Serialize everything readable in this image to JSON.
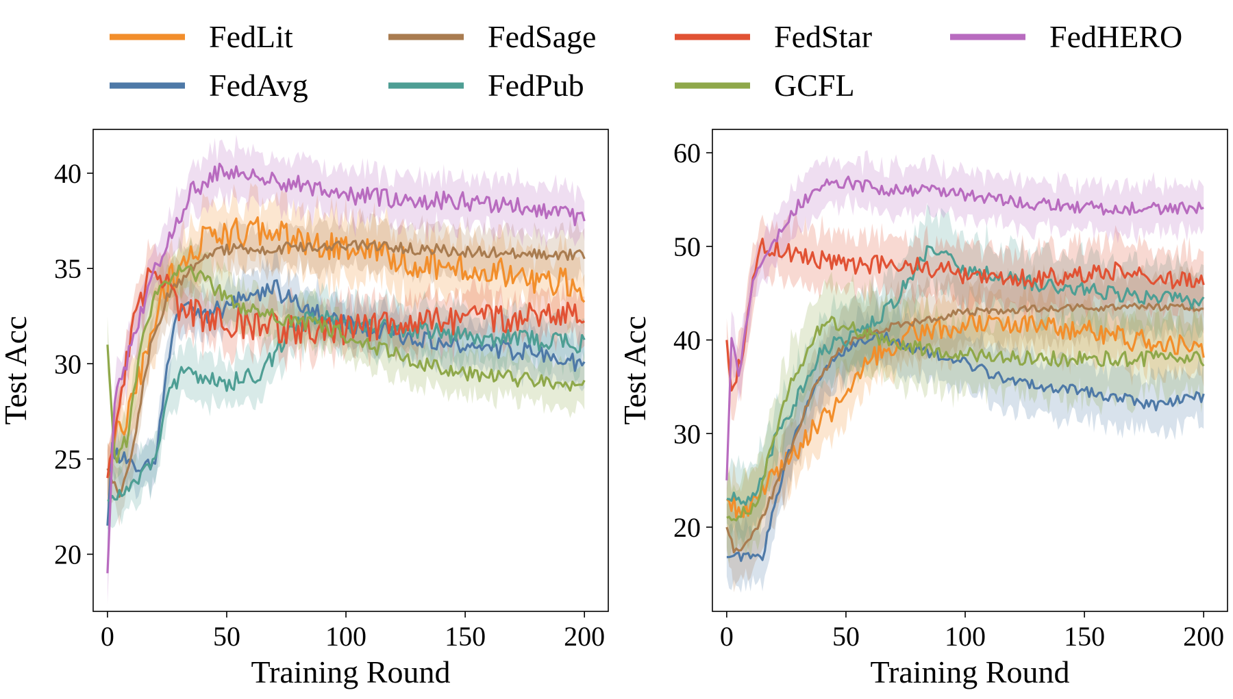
{
  "legend": [
    {
      "name": "FedLit",
      "color": "#F28E2B"
    },
    {
      "name": "FedAvg",
      "color": "#4E79A7"
    },
    {
      "name": "FedSage",
      "color": "#A97C50"
    },
    {
      "name": "FedPub",
      "color": "#4E9E94"
    },
    {
      "name": "FedStar",
      "color": "#E15234"
    },
    {
      "name": "GCFL",
      "color": "#8FA84A"
    },
    {
      "name": "FedHERO",
      "color": "#B86BBF"
    }
  ],
  "chart_data": [
    {
      "type": "line",
      "title": "",
      "xlabel": "Training Round",
      "ylabel": "Test Acc",
      "xlim": [
        -6,
        210
      ],
      "ylim": [
        17,
        42.3
      ],
      "xticks": [
        0,
        50,
        100,
        150,
        200
      ],
      "xtick_labels": [
        "0",
        "50",
        "100",
        "150",
        "200"
      ],
      "yticks": [
        20,
        25,
        30,
        35,
        40
      ],
      "ytick_labels": [
        "20",
        "25",
        "30",
        "35",
        "40"
      ],
      "band": "shaded ±std around each series",
      "series": [
        {
          "name": "FedLit",
          "color": "#F28E2B",
          "band": 1.6,
          "noise": 0.8,
          "points": [
            [
              0,
              24.0
            ],
            [
              3,
              26.0
            ],
            [
              8,
              27.0
            ],
            [
              15,
              30.0
            ],
            [
              22,
              33.5
            ],
            [
              30,
              35.0
            ],
            [
              40,
              36.5
            ],
            [
              60,
              37.0
            ],
            [
              80,
              36.5
            ],
            [
              100,
              36.0
            ],
            [
              120,
              35.5
            ],
            [
              150,
              35.0
            ],
            [
              180,
              34.5
            ],
            [
              200,
              34.0
            ]
          ]
        },
        {
          "name": "FedAvg",
          "color": "#4E79A7",
          "band": 1.2,
          "noise": 0.5,
          "points": [
            [
              0,
              21.5
            ],
            [
              2,
              25.5
            ],
            [
              6,
              25.0
            ],
            [
              12,
              24.5
            ],
            [
              20,
              25.0
            ],
            [
              25,
              29.5
            ],
            [
              30,
              33.0
            ],
            [
              40,
              32.5
            ],
            [
              50,
              33.0
            ],
            [
              60,
              33.5
            ],
            [
              70,
              34.0
            ],
            [
              80,
              33.0
            ],
            [
              100,
              32.0
            ],
            [
              150,
              31.0
            ],
            [
              180,
              30.5
            ],
            [
              200,
              30.0
            ]
          ]
        },
        {
          "name": "FedSage",
          "color": "#A97C50",
          "band": 1.2,
          "noise": 0.3,
          "points": [
            [
              0,
              24.5
            ],
            [
              5,
              23.0
            ],
            [
              10,
              25.0
            ],
            [
              18,
              31.0
            ],
            [
              25,
              33.5
            ],
            [
              35,
              35.0
            ],
            [
              45,
              36.0
            ],
            [
              60,
              36.0
            ],
            [
              100,
              36.2
            ],
            [
              150,
              35.9
            ],
            [
              200,
              35.7
            ]
          ]
        },
        {
          "name": "FedPub",
          "color": "#4E9E94",
          "band": 1.3,
          "noise": 0.5,
          "points": [
            [
              0,
              22.8
            ],
            [
              5,
              23.0
            ],
            [
              10,
              23.5
            ],
            [
              15,
              24.5
            ],
            [
              20,
              25.0
            ],
            [
              25,
              28.0
            ],
            [
              30,
              29.5
            ],
            [
              50,
              29.0
            ],
            [
              65,
              29.5
            ],
            [
              75,
              31.5
            ],
            [
              85,
              32.5
            ],
            [
              100,
              32.0
            ],
            [
              150,
              31.5
            ],
            [
              200,
              31.0
            ]
          ]
        },
        {
          "name": "FedStar",
          "color": "#E15234",
          "band": 1.2,
          "noise": 0.8,
          "points": [
            [
              0,
              24.0
            ],
            [
              3,
              27.0
            ],
            [
              8,
              30.0
            ],
            [
              12,
              33.0
            ],
            [
              18,
              34.5
            ],
            [
              25,
              34.5
            ],
            [
              30,
              33.0
            ],
            [
              40,
              32.5
            ],
            [
              60,
              32.0
            ],
            [
              80,
              31.8
            ],
            [
              100,
              31.8
            ],
            [
              150,
              32.3
            ],
            [
              200,
              32.5
            ]
          ]
        },
        {
          "name": "GCFL",
          "color": "#8FA84A",
          "band": 1.2,
          "noise": 0.4,
          "points": [
            [
              0,
              31.0
            ],
            [
              3,
              25.0
            ],
            [
              8,
              26.0
            ],
            [
              15,
              31.5
            ],
            [
              20,
              33.5
            ],
            [
              30,
              35.0
            ],
            [
              40,
              34.5
            ],
            [
              45,
              34.0
            ],
            [
              55,
              33.0
            ],
            [
              70,
              32.5
            ],
            [
              90,
              32.0
            ],
            [
              110,
              31.0
            ],
            [
              130,
              30.0
            ],
            [
              150,
              29.5
            ],
            [
              200,
              28.8
            ]
          ]
        },
        {
          "name": "FedHERO",
          "color": "#B86BBF",
          "band": 1.3,
          "noise": 0.5,
          "points": [
            [
              0,
              19.0
            ],
            [
              3,
              28.0
            ],
            [
              8,
              30.0
            ],
            [
              15,
              33.0
            ],
            [
              22,
              35.5
            ],
            [
              28,
              37.0
            ],
            [
              35,
              39.0
            ],
            [
              45,
              40.0
            ],
            [
              60,
              40.0
            ],
            [
              75,
              39.5
            ],
            [
              100,
              38.8
            ],
            [
              150,
              38.5
            ],
            [
              180,
              38.2
            ],
            [
              200,
              37.5
            ]
          ]
        }
      ]
    },
    {
      "type": "line",
      "title": "",
      "xlabel": "Training Round",
      "ylabel": "Test Acc",
      "xlim": [
        -6,
        210
      ],
      "ylim": [
        11,
        62.5
      ],
      "xticks": [
        0,
        50,
        100,
        150,
        200
      ],
      "xtick_labels": [
        "0",
        "50",
        "100",
        "150",
        "200"
      ],
      "yticks": [
        20,
        30,
        40,
        50,
        60
      ],
      "ytick_labels": [
        "20",
        "30",
        "40",
        "50",
        "60"
      ],
      "band": "shaded ±std around each series",
      "series": [
        {
          "name": "FedLit",
          "color": "#F28E2B",
          "band": 3.0,
          "noise": 1.2,
          "points": [
            [
              0,
              23.0
            ],
            [
              5,
              22.0
            ],
            [
              10,
              22.5
            ],
            [
              15,
              24.0
            ],
            [
              25,
              27.0
            ],
            [
              35,
              30.0
            ],
            [
              50,
              34.0
            ],
            [
              60,
              38.0
            ],
            [
              80,
              41.0
            ],
            [
              100,
              41.5
            ],
            [
              120,
              42.0
            ],
            [
              150,
              41.0
            ],
            [
              170,
              40.0
            ],
            [
              200,
              39.0
            ]
          ]
        },
        {
          "name": "FedAvg",
          "color": "#4E79A7",
          "band": 3.0,
          "noise": 0.6,
          "points": [
            [
              0,
              16.8
            ],
            [
              5,
              16.8
            ],
            [
              15,
              16.8
            ],
            [
              20,
              22.0
            ],
            [
              25,
              27.0
            ],
            [
              35,
              34.0
            ],
            [
              45,
              38.0
            ],
            [
              55,
              40.0
            ],
            [
              65,
              40.5
            ],
            [
              80,
              39.0
            ],
            [
              100,
              37.5
            ],
            [
              120,
              35.5
            ],
            [
              150,
              34.5
            ],
            [
              180,
              33.0
            ],
            [
              200,
              34.0
            ]
          ]
        },
        {
          "name": "FedSage",
          "color": "#A97C50",
          "band": 3.5,
          "noise": 0.4,
          "points": [
            [
              0,
              20.0
            ],
            [
              3,
              17.5
            ],
            [
              8,
              18.0
            ],
            [
              15,
              21.0
            ],
            [
              25,
              27.0
            ],
            [
              35,
              34.0
            ],
            [
              45,
              38.5
            ],
            [
              55,
              40.5
            ],
            [
              70,
              41.5
            ],
            [
              100,
              43.0
            ],
            [
              150,
              43.5
            ],
            [
              200,
              43.5
            ]
          ]
        },
        {
          "name": "FedPub",
          "color": "#4E9E94",
          "band": 3.5,
          "noise": 0.8,
          "points": [
            [
              0,
              23.0
            ],
            [
              5,
              23.0
            ],
            [
              12,
              23.2
            ],
            [
              20,
              29.0
            ],
            [
              30,
              34.0
            ],
            [
              40,
              39.0
            ],
            [
              50,
              40.0
            ],
            [
              60,
              41.5
            ],
            [
              70,
              44.0
            ],
            [
              80,
              48.0
            ],
            [
              85,
              50.0
            ],
            [
              100,
              47.5
            ],
            [
              130,
              46.0
            ],
            [
              160,
              45.0
            ],
            [
              200,
              44.0
            ]
          ]
        },
        {
          "name": "FedStar",
          "color": "#E15234",
          "band": 3.0,
          "noise": 1.0,
          "points": [
            [
              0,
              40.0
            ],
            [
              2,
              34.0
            ],
            [
              6,
              38.0
            ],
            [
              10,
              45.0
            ],
            [
              15,
              50.0
            ],
            [
              25,
              49.5
            ],
            [
              50,
              48.0
            ],
            [
              80,
              48.0
            ],
            [
              100,
              47.0
            ],
            [
              130,
              46.5
            ],
            [
              160,
              47.5
            ],
            [
              200,
              46.0
            ]
          ]
        },
        {
          "name": "GCFL",
          "color": "#8FA84A",
          "band": 4.0,
          "noise": 0.8,
          "points": [
            [
              0,
              21.0
            ],
            [
              5,
              21.5
            ],
            [
              12,
              22.0
            ],
            [
              20,
              30.0
            ],
            [
              28,
              36.0
            ],
            [
              38,
              41.0
            ],
            [
              45,
              42.0
            ],
            [
              55,
              41.0
            ],
            [
              70,
              39.5
            ],
            [
              100,
              38.5
            ],
            [
              130,
              38.0
            ],
            [
              170,
              38.0
            ],
            [
              200,
              38.0
            ]
          ]
        },
        {
          "name": "FedHERO",
          "color": "#B86BBF",
          "band": 2.5,
          "noise": 0.7,
          "points": [
            [
              0,
              25.0
            ],
            [
              2,
              40.0
            ],
            [
              5,
              36.0
            ],
            [
              10,
              45.0
            ],
            [
              15,
              49.0
            ],
            [
              22,
              51.5
            ],
            [
              30,
              54.5
            ],
            [
              40,
              56.5
            ],
            [
              50,
              57.0
            ],
            [
              65,
              56.0
            ],
            [
              80,
              56.0
            ],
            [
              100,
              55.5
            ],
            [
              130,
              54.5
            ],
            [
              160,
              54.0
            ],
            [
              200,
              54.0
            ]
          ]
        }
      ]
    }
  ]
}
